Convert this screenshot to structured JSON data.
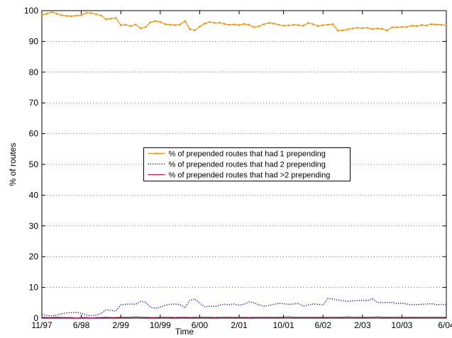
{
  "chart_data": {
    "type": "line",
    "x_label": "Time",
    "y_label": "% of routes",
    "categories": [
      "11/97",
      null,
      null,
      null,
      null,
      null,
      null,
      null,
      "6/98",
      null,
      null,
      null,
      null,
      null,
      null,
      null,
      "2/99",
      null,
      null,
      null,
      null,
      null,
      null,
      null,
      "10/99",
      null,
      null,
      null,
      null,
      null,
      null,
      null,
      "6/00",
      null,
      null,
      null,
      null,
      null,
      null,
      null,
      "2/01",
      null,
      null,
      null,
      null,
      null,
      null,
      null,
      null,
      "10/01",
      null,
      null,
      null,
      null,
      null,
      null,
      null,
      "6/02",
      null,
      null,
      null,
      null,
      null,
      null,
      null,
      "2/03",
      null,
      null,
      null,
      null,
      null,
      null,
      null,
      "10/03",
      null,
      null,
      null,
      null,
      null,
      null,
      null,
      null,
      "6/04"
    ],
    "series": [
      {
        "name": "% of prepended routes that had 1 prepending",
        "color": "#ff8c00",
        "style": "solid-marker",
        "values": [
          98.5,
          99,
          99.5,
          99,
          98.5,
          98.3,
          98.2,
          98.4,
          98.5,
          99.3,
          99.2,
          98.8,
          98.4,
          97.2,
          97.4,
          97.6,
          95.3,
          95.4,
          95,
          95.5,
          94.3,
          94.6,
          96.2,
          96.6,
          96.3,
          95.6,
          95.4,
          95.3,
          95.5,
          96.6,
          94,
          93.6,
          94.8,
          95.8,
          96.3,
          96,
          96.1,
          95.7,
          95.4,
          95.5,
          95.3,
          95.7,
          95.4,
          94.6,
          94.9,
          95.6,
          96,
          95.8,
          95.4,
          95.1,
          95.2,
          95.4,
          95.3,
          95.1,
          96,
          95.6,
          95,
          95.3,
          95.4,
          95.6,
          93.5,
          93.6,
          93.9,
          94.2,
          94.4,
          94.3,
          94.4,
          94,
          94.2,
          94.1,
          93.5,
          94.6,
          94.6,
          94.7,
          94.7,
          95.1,
          95,
          95.3,
          95.2,
          95.6,
          95.5,
          95.4,
          95.2
        ]
      },
      {
        "name": "% of prepended routes that had 2 prepending",
        "color": "#1010c8",
        "style": "dotted",
        "values": [
          1.2,
          0.9,
          0.7,
          1.0,
          1.4,
          1.7,
          1.8,
          1.9,
          1.6,
          1.0,
          0.8,
          1.0,
          1.5,
          2.7,
          2.5,
          2.3,
          4.3,
          4.5,
          4.6,
          4.5,
          5.5,
          5.2,
          3.6,
          3.2,
          3.6,
          4.2,
          4.5,
          4.6,
          4.4,
          3.4,
          5.8,
          6.2,
          4.9,
          3.7,
          3.9,
          3.8,
          4.2,
          4.5,
          4.4,
          4.6,
          4.2,
          4.5,
          5.3,
          5.0,
          4.3,
          3.9,
          4.1,
          4.5,
          4.8,
          4.7,
          4.5,
          4.6,
          4.8,
          3.9,
          4.3,
          4.6,
          4.5,
          4.3,
          6.4,
          6.2,
          5.9,
          5.7,
          5.5,
          5.6,
          5.7,
          5.8,
          5.7,
          6.3,
          5.1,
          5.0,
          5.1,
          5.1,
          4.7,
          4.9,
          4.6,
          4.4,
          4.4,
          4.5,
          4.6,
          4.7,
          4.4,
          4.5,
          4.4
        ]
      },
      {
        "name": "% of prepended routes that had >2 prepending",
        "color": "#d0105a",
        "style": "solid",
        "values": [
          0.3,
          0.2,
          0.2,
          0.3,
          0.2,
          0.2,
          0.2,
          0.1,
          0.2,
          0.2,
          0.1,
          0.2,
          0.2,
          0.3,
          0.2,
          0.2,
          0.3,
          0.3,
          0.3,
          0.4,
          0.3,
          0.3,
          0.2,
          0.2,
          0.3,
          0.3,
          0.3,
          0.2,
          0.3,
          0.3,
          0.2,
          0.3,
          0.3,
          0.3,
          0.3,
          0.2,
          0.3,
          0.3,
          0.3,
          0.3,
          0.3,
          0.3,
          0.2,
          0.3,
          0.3,
          0.3,
          0.3,
          0.3,
          0.3,
          0.3,
          0.4,
          0.3,
          0.3,
          0.3,
          0.3,
          0.3,
          0.3,
          0.3,
          0.3,
          0.3,
          0.3,
          0.3,
          0.4,
          0.3,
          0.3,
          0.3,
          0.3,
          0.3,
          0.4,
          0.3,
          0.3,
          0.3,
          0.3,
          0.3,
          0.3,
          0.3,
          0.3,
          0.3,
          0.3,
          0.3,
          0.3,
          0.3,
          0.3
        ]
      }
    ],
    "ylim": [
      0,
      100
    ],
    "yticks": [
      0,
      10,
      20,
      30,
      40,
      50,
      60,
      70,
      80,
      90,
      100
    ],
    "grid": true,
    "legend": "center"
  }
}
